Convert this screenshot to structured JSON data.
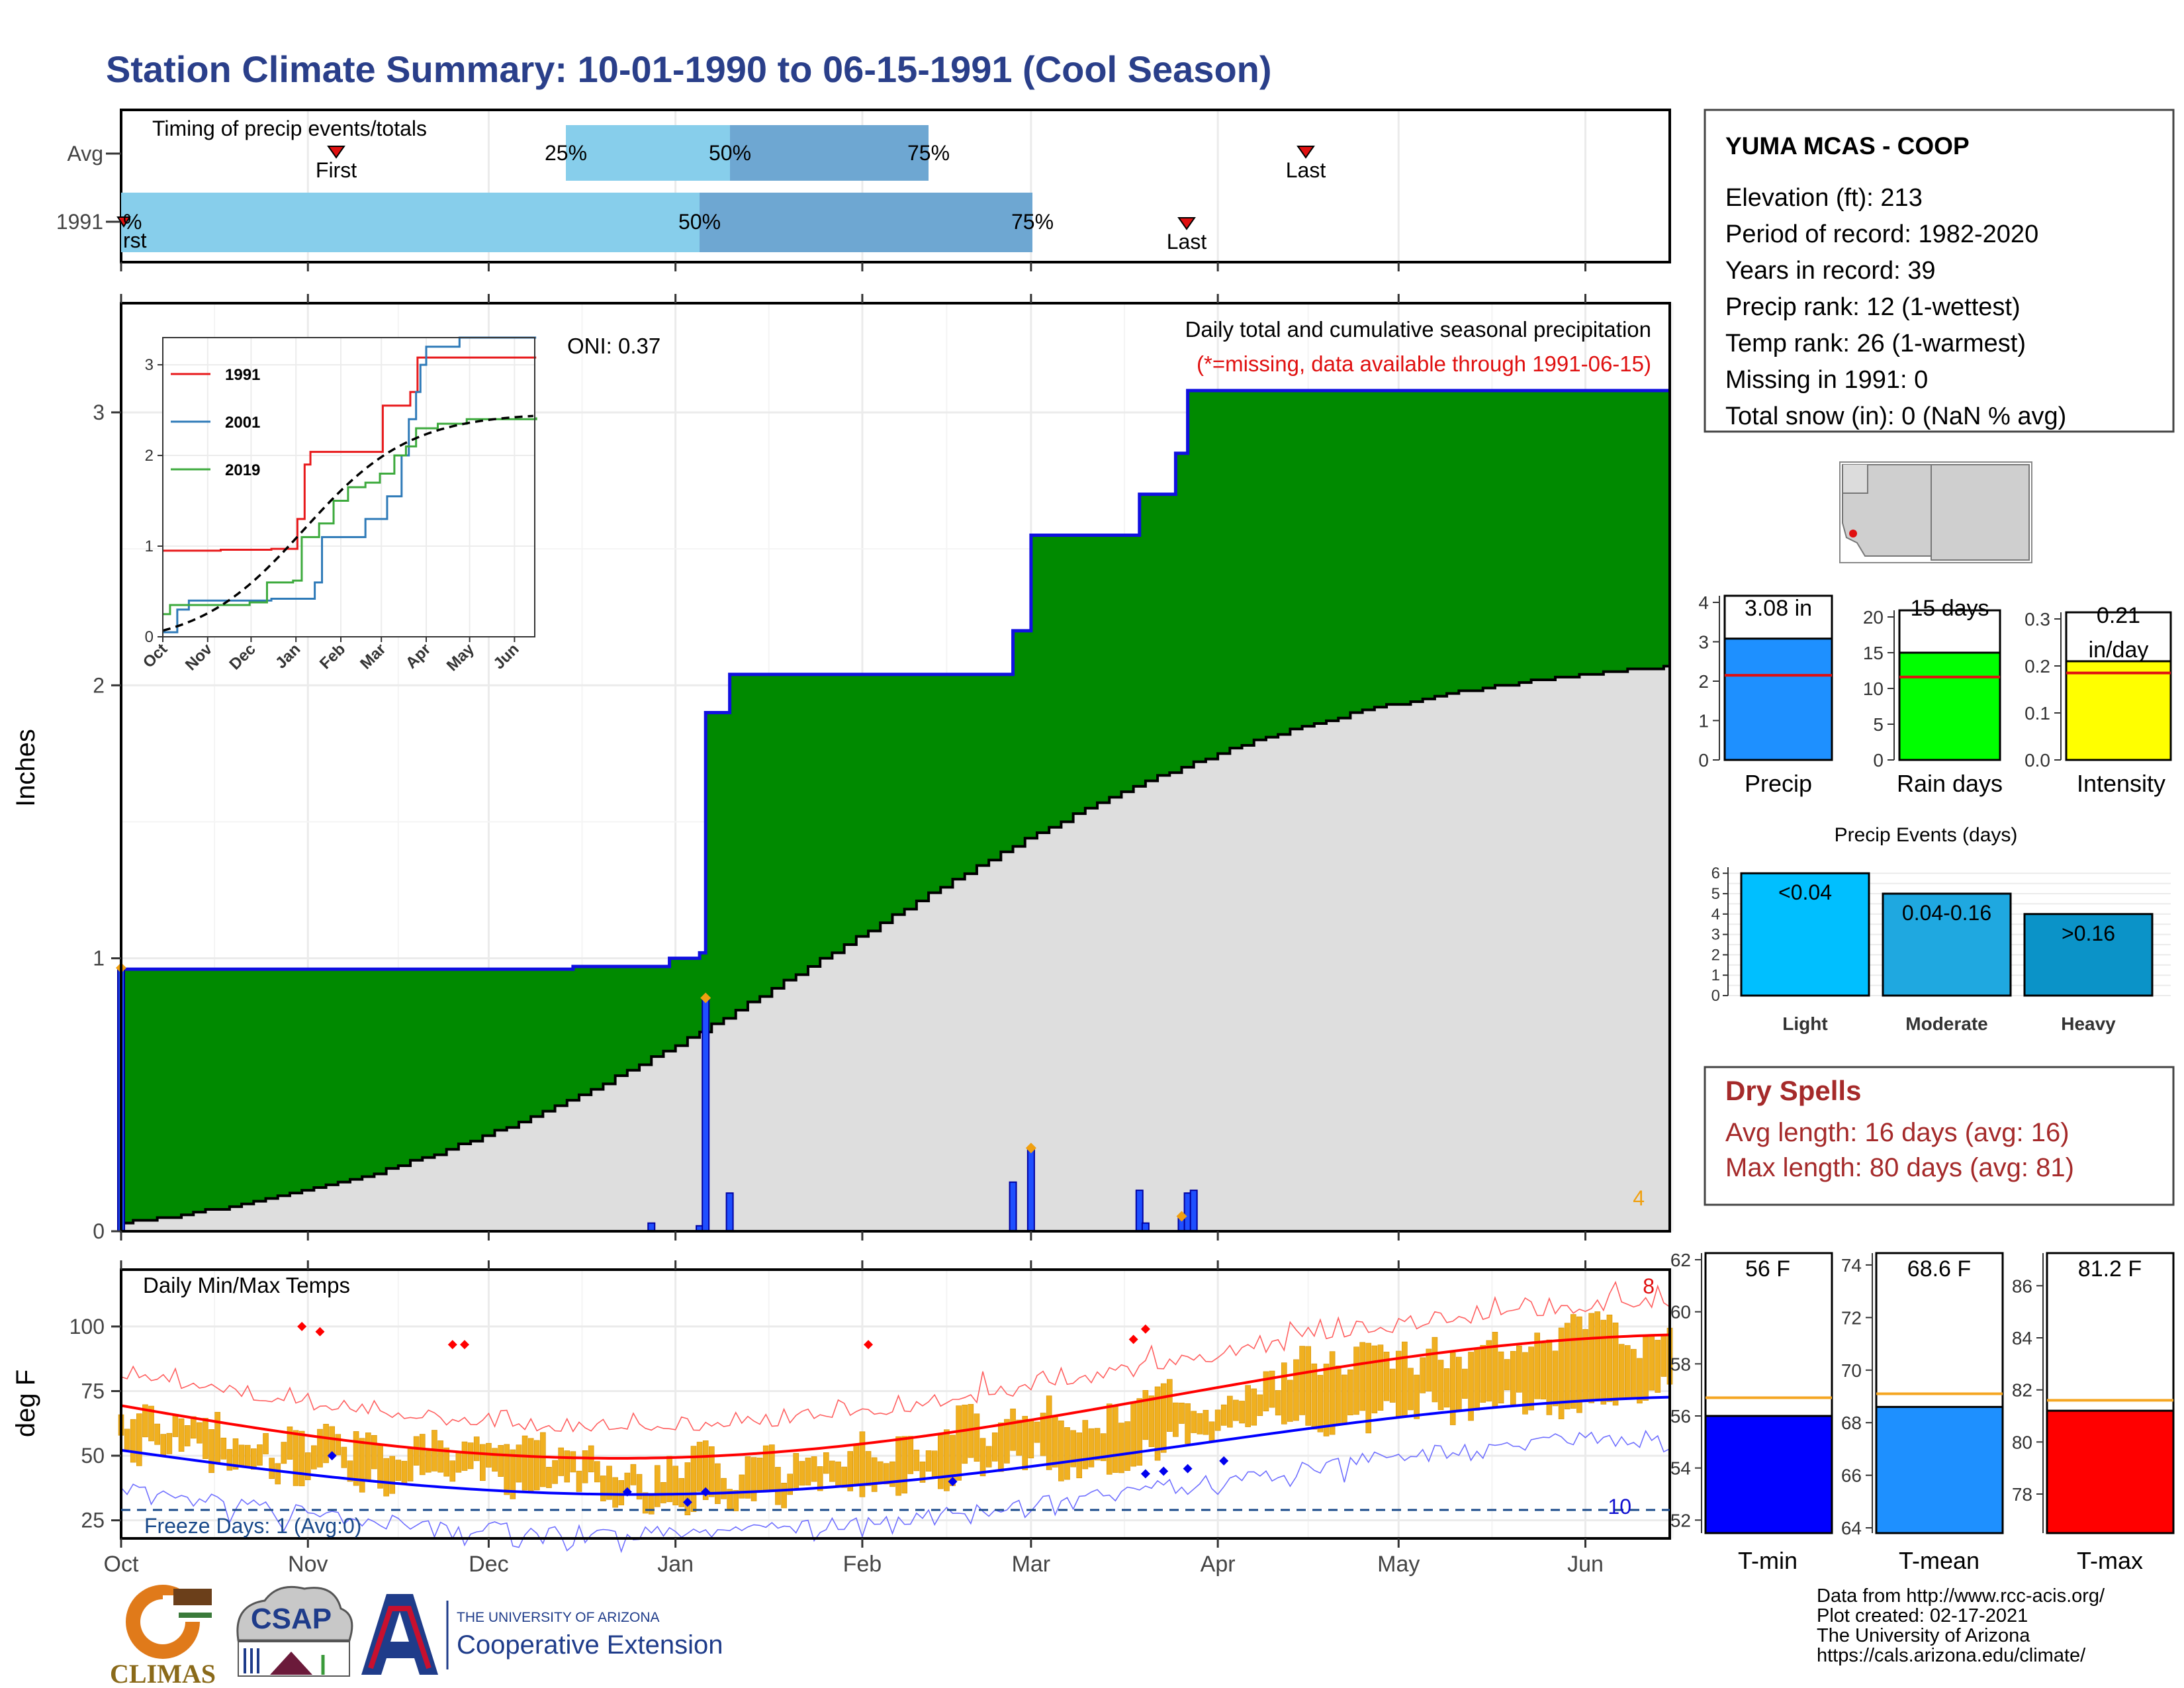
{
  "title": "Station Climate Summary: 10-01-1990 to 06-15-1991 (Cool Season)",
  "station": {
    "name": "YUMA MCAS - COOP",
    "lines": [
      "Elevation (ft): 213",
      "Period of record: 1982-2020",
      "Years in record: 39",
      "Precip rank: 12 (1-wettest)",
      "Temp rank: 26 (1-warmest)",
      "Missing in 1991: 0",
      "Total snow (in): 0 (NaN % avg)"
    ]
  },
  "timing": {
    "title": "Timing of precip events/totals",
    "rows": [
      "Avg",
      "1991"
    ],
    "avg": {
      "first": "First",
      "last": "Last",
      "p25": "25%",
      "p50": "50%",
      "p75": "75%"
    },
    "y1991": {
      "first": "rst",
      "p0": "%",
      "p50": "50%",
      "p75": "75%",
      "last": "Last"
    }
  },
  "precip_panel": {
    "oni": "ONI: 0.37",
    "caption1": "Daily total and cumulative seasonal precipitation",
    "caption2": "(*=missing, data available through 1991-06-15)",
    "ylabel": "Inches",
    "count_label": "4",
    "inset": {
      "legend": [
        "1991",
        "2001",
        "2019"
      ],
      "legend_colors": [
        "#e8191b",
        "#2e7ab8",
        "#3daa3d"
      ],
      "xticks": [
        "Oct",
        "Nov",
        "Dec",
        "Jan",
        "Feb",
        "Mar",
        "Apr",
        "May",
        "Jun"
      ],
      "yticks": [
        "0",
        "1",
        "2",
        "3"
      ]
    }
  },
  "temp_panel": {
    "title": "Daily Min/Max Temps",
    "ylabel": "deg F",
    "freeze": "Freeze Days: 1 (Avg:0)",
    "count_hi": "8",
    "count_lo": "10",
    "yticks": [
      "25",
      "50",
      "75",
      "100"
    ]
  },
  "month_ticks": [
    "Oct",
    "Nov",
    "Dec",
    "Jan",
    "Feb",
    "Mar",
    "Apr",
    "May",
    "Jun"
  ],
  "precip_yticks": [
    "0",
    "1",
    "2",
    "3"
  ],
  "summary_bars": {
    "precip": {
      "label": "Precip",
      "value": 3.08,
      "value_text": "3.08 in",
      "avg": 2.15,
      "ylim": [
        0,
        4
      ],
      "yticks": [
        "0",
        "1",
        "2",
        "3",
        "4"
      ],
      "color": "#1e90ff"
    },
    "raindays": {
      "label": "Rain days",
      "value": 15,
      "value_text": "15 days",
      "avg": 11.6,
      "ylim": [
        0,
        20
      ],
      "yticks": [
        "0",
        "5",
        "10",
        "15",
        "20"
      ],
      "color": "#00ff00"
    },
    "intensity": {
      "label": "Intensity",
      "value": 0.21,
      "value_text_1": "0.21",
      "value_text_2": "in/day",
      "avg": 0.185,
      "ylim": [
        0,
        0.3
      ],
      "yticks": [
        "0.0",
        "0.1",
        "0.2",
        "0.3"
      ],
      "color": "#ffff00"
    }
  },
  "events": {
    "title": "Precip Events (days)",
    "categories": [
      "Light",
      "Moderate",
      "Heavy"
    ],
    "labels": [
      "<0.04",
      "0.04-0.16",
      ">0.16"
    ],
    "values": [
      6,
      5,
      4
    ],
    "colors": [
      "#00bfff",
      "#1fa8e0",
      "#0b93c8"
    ],
    "yticks": [
      "0",
      "1",
      "2",
      "3",
      "4",
      "5",
      "6"
    ]
  },
  "dry_spells": {
    "title": "Dry Spells",
    "line1": "Avg length: 16 days (avg: 16)",
    "line2": "Max length: 80 days (avg: 81)"
  },
  "temp_bars": {
    "tmin": {
      "label": "T-min",
      "value": 56,
      "value_text": "56 F",
      "avg": 56.7,
      "ylim": [
        51.5,
        62
      ],
      "yticks": [
        "52",
        "54",
        "56",
        "58",
        "60",
        "62"
      ],
      "color": "#0000ff"
    },
    "tmean": {
      "label": "T-mean",
      "value": 68.6,
      "value_text": "68.6 F",
      "avg": 69.1,
      "ylim": [
        63.8,
        74.2
      ],
      "yticks": [
        "64",
        "66",
        "68",
        "70",
        "72",
        "74"
      ],
      "color": "#1e90ff"
    },
    "tmax": {
      "label": "T-max",
      "value": 81.2,
      "value_text": "81.2 F",
      "avg": 81.6,
      "ylim": [
        76.5,
        87
      ],
      "yticks": [
        "78",
        "80",
        "82",
        "84",
        "86"
      ],
      "color": "#ff0000"
    }
  },
  "footer": [
    "Data from http://www.rcc-acis.org/",
    "Plot created: 02-17-2021",
    "The University of Arizona",
    "https://cals.arizona.edu/climate/"
  ],
  "logos": {
    "climas": "CLIMAS",
    "csap": "CSAP",
    "ua_small": "THE UNIVERSITY OF ARIZONA",
    "ua_big": "Cooperative Extension"
  },
  "chart_data": {
    "type": "area",
    "title": "Daily total and cumulative seasonal precipitation",
    "ylabel": "Inches",
    "ylim": [
      0,
      3.4
    ],
    "cumulative_1991": [
      {
        "x": "1990-10-01",
        "y": 0.96
      },
      {
        "x": "1990-12-15",
        "y": 0.97
      },
      {
        "x": "1990-12-31",
        "y": 1.0
      },
      {
        "x": "1991-01-05",
        "y": 1.02
      },
      {
        "x": "1991-01-06",
        "y": 1.9
      },
      {
        "x": "1991-01-10",
        "y": 2.04
      },
      {
        "x": "1991-02-25",
        "y": 2.04
      },
      {
        "x": "1991-02-26",
        "y": 2.2
      },
      {
        "x": "1991-03-01",
        "y": 2.55
      },
      {
        "x": "1991-03-18",
        "y": 2.55
      },
      {
        "x": "1991-03-19",
        "y": 2.7
      },
      {
        "x": "1991-03-25",
        "y": 2.85
      },
      {
        "x": "1991-03-27",
        "y": 3.08
      },
      {
        "x": "1991-06-15",
        "y": 3.08
      }
    ],
    "cumulative_avg_end": 2.07,
    "daily_1991": [
      {
        "x": "1990-10-01",
        "y": 0.96
      },
      {
        "x": "1990-12-28",
        "y": 0.03
      },
      {
        "x": "1991-01-05",
        "y": 0.02
      },
      {
        "x": "1991-01-06",
        "y": 0.85
      },
      {
        "x": "1991-01-10",
        "y": 0.14
      },
      {
        "x": "1991-02-26",
        "y": 0.18
      },
      {
        "x": "1991-03-01",
        "y": 0.3
      },
      {
        "x": "1991-03-19",
        "y": 0.15
      },
      {
        "x": "1991-03-20",
        "y": 0.03
      },
      {
        "x": "1991-03-26",
        "y": 0.05
      },
      {
        "x": "1991-03-27",
        "y": 0.14
      },
      {
        "x": "1991-03-28",
        "y": 0.15
      }
    ],
    "grid": true
  }
}
